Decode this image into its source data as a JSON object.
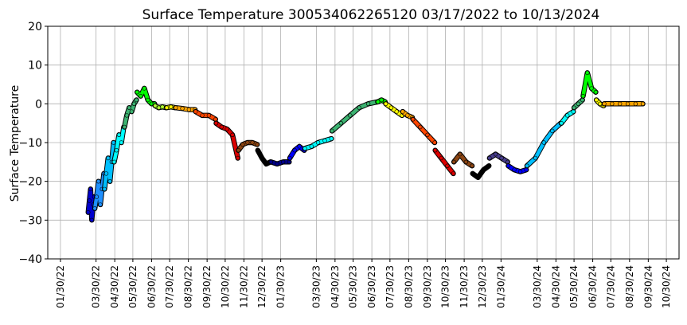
{
  "chart_data": {
    "type": "scatter",
    "title": "Surface Temperature 300534062265120  03/17/2022 to 10/13/2024",
    "ylabel": "Surface Temperature",
    "xlabel": "",
    "ylim": [
      -40,
      20
    ],
    "xlim": [
      "2022-01-09",
      "2024-11-20"
    ],
    "grid": true,
    "y_ticks": [
      "−40",
      "−30",
      "−20",
      "−10",
      "0",
      "10",
      "20"
    ],
    "x_ticks": [
      {
        "date": "2022-01-30",
        "label": "01/30/22"
      },
      {
        "date": "2022-03-30",
        "label": "03/30/22"
      },
      {
        "date": "2022-04-30",
        "label": "04/30/22"
      },
      {
        "date": "2022-05-30",
        "label": "05/30/22"
      },
      {
        "date": "2022-06-30",
        "label": "06/30/22"
      },
      {
        "date": "2022-07-30",
        "label": "07/30/22"
      },
      {
        "date": "2022-08-30",
        "label": "08/30/22"
      },
      {
        "date": "2022-09-30",
        "label": "09/30/22"
      },
      {
        "date": "2022-10-30",
        "label": "10/30/22"
      },
      {
        "date": "2022-11-30",
        "label": "11/30/22"
      },
      {
        "date": "2022-12-30",
        "label": "12/30/22"
      },
      {
        "date": "2023-01-30",
        "label": "01/30/23"
      },
      {
        "date": "2023-03-30",
        "label": "03/30/23"
      },
      {
        "date": "2023-04-30",
        "label": "04/30/23"
      },
      {
        "date": "2023-05-30",
        "label": "05/30/23"
      },
      {
        "date": "2023-06-30",
        "label": "06/30/23"
      },
      {
        "date": "2023-07-30",
        "label": "07/30/23"
      },
      {
        "date": "2023-08-30",
        "label": "08/30/23"
      },
      {
        "date": "2023-09-30",
        "label": "09/30/23"
      },
      {
        "date": "2023-10-30",
        "label": "10/30/23"
      },
      {
        "date": "2023-11-30",
        "label": "11/30/23"
      },
      {
        "date": "2023-12-30",
        "label": "12/30/23"
      },
      {
        "date": "2024-01-30",
        "label": "01/30/24"
      },
      {
        "date": "2024-03-30",
        "label": "03/30/24"
      },
      {
        "date": "2024-04-30",
        "label": "04/30/24"
      },
      {
        "date": "2024-05-30",
        "label": "05/30/24"
      },
      {
        "date": "2024-06-30",
        "label": "06/30/24"
      },
      {
        "date": "2024-07-30",
        "label": "07/30/24"
      },
      {
        "date": "2024-08-30",
        "label": "08/30/24"
      },
      {
        "date": "2024-09-30",
        "label": "09/30/24"
      },
      {
        "date": "2024-10-30",
        "label": "10/30/24"
      }
    ],
    "marker_edge_color": "#000000",
    "series": [
      {
        "color": "#0000cd",
        "x": [
          "2022-03-17",
          "2022-03-19",
          "2022-03-21",
          "2022-03-23",
          "2022-03-25",
          "2022-03-27"
        ],
        "y": [
          -28,
          -25,
          -22,
          -30,
          -26,
          -24
        ]
      },
      {
        "color": "#1e90ff",
        "x": [
          "2022-03-28",
          "2022-03-31",
          "2022-04-03",
          "2022-04-06",
          "2022-04-09",
          "2022-04-12"
        ],
        "y": [
          -27,
          -24,
          -20,
          -26,
          -22,
          -18
        ]
      },
      {
        "color": "#00bfff",
        "x": [
          "2022-04-13",
          "2022-04-16",
          "2022-04-19",
          "2022-04-22",
          "2022-04-25",
          "2022-04-28"
        ],
        "y": [
          -22,
          -18,
          -14,
          -20,
          -15,
          -10
        ]
      },
      {
        "color": "#00ffff",
        "x": [
          "2022-04-29",
          "2022-05-03",
          "2022-05-07",
          "2022-05-11",
          "2022-05-15"
        ],
        "y": [
          -15,
          -12,
          -8,
          -10,
          -6
        ]
      },
      {
        "color": "#3cb371",
        "x": [
          "2022-05-16",
          "2022-05-20",
          "2022-05-24",
          "2022-05-28",
          "2022-06-01",
          "2022-06-05"
        ],
        "y": [
          -6,
          -3,
          -1,
          -2,
          0,
          1
        ]
      },
      {
        "color": "#00ff00",
        "x": [
          "2022-06-06",
          "2022-06-12",
          "2022-06-18",
          "2022-06-24",
          "2022-06-30",
          "2022-07-05"
        ],
        "y": [
          3,
          2,
          4,
          1,
          0,
          0
        ]
      },
      {
        "color": "#adff2f",
        "x": [
          "2022-07-06",
          "2022-07-12",
          "2022-07-18",
          "2022-07-24"
        ],
        "y": [
          -0.5,
          -1,
          -0.8,
          -1
        ]
      },
      {
        "color": "#ffff00",
        "x": [
          "2022-07-25",
          "2022-08-01",
          "2022-08-08"
        ],
        "y": [
          -1,
          -0.8,
          -1
        ]
      },
      {
        "color": "#ffa500",
        "x": [
          "2022-08-09",
          "2022-08-20",
          "2022-08-31",
          "2022-09-10"
        ],
        "y": [
          -1,
          -1.2,
          -1.5,
          -1.5
        ]
      },
      {
        "color": "#ff4500",
        "x": [
          "2022-09-11",
          "2022-09-22",
          "2022-10-03",
          "2022-10-14"
        ],
        "y": [
          -2,
          -3,
          -3,
          -4
        ]
      },
      {
        "color": "#dc0000",
        "x": [
          "2022-10-15",
          "2022-10-24",
          "2022-11-02",
          "2022-11-11",
          "2022-11-20"
        ],
        "y": [
          -5,
          -6,
          -6.5,
          -8,
          -14
        ]
      },
      {
        "color": "#8b4513",
        "x": [
          "2022-11-21",
          "2022-11-28",
          "2022-12-06",
          "2022-12-14",
          "2022-12-22"
        ],
        "y": [
          -12,
          -10.5,
          -10,
          -10,
          -10.5
        ]
      },
      {
        "color": "#000000",
        "x": [
          "2022-12-23",
          "2022-12-30",
          "2023-01-06",
          "2023-01-13"
        ],
        "y": [
          -12,
          -14,
          -15.5,
          -15
        ]
      },
      {
        "color": "#00008b",
        "x": [
          "2023-01-14",
          "2023-01-24",
          "2023-02-03",
          "2023-02-13"
        ],
        "y": [
          -15,
          -15.5,
          -15,
          -15
        ]
      },
      {
        "color": "#0000ff",
        "x": [
          "2023-02-14",
          "2023-02-22",
          "2023-03-02",
          "2023-03-10"
        ],
        "y": [
          -14,
          -12,
          -11,
          -12
        ]
      },
      {
        "color": "#00ffff",
        "x": [
          "2023-03-11",
          "2023-03-22",
          "2023-04-02",
          "2023-04-13",
          "2023-04-24"
        ],
        "y": [
          -11.5,
          -11,
          -10,
          -9.5,
          -9
        ]
      },
      {
        "color": "#3cb371",
        "x": [
          "2023-04-25",
          "2023-05-10",
          "2023-05-25",
          "2023-06-09",
          "2023-06-24",
          "2023-07-09"
        ],
        "y": [
          -7,
          -5,
          -3,
          -1,
          0,
          0.5
        ]
      },
      {
        "color": "#00ff00",
        "x": [
          "2023-07-10",
          "2023-07-16",
          "2023-07-22"
        ],
        "y": [
          0.5,
          1,
          0.5
        ]
      },
      {
        "color": "#ffff00",
        "x": [
          "2023-07-23",
          "2023-08-01",
          "2023-08-10",
          "2023-08-19"
        ],
        "y": [
          0,
          -1,
          -2,
          -3
        ]
      },
      {
        "color": "#ffa500",
        "x": [
          "2023-08-20",
          "2023-08-28",
          "2023-09-05"
        ],
        "y": [
          -2,
          -3,
          -3.5
        ]
      },
      {
        "color": "#ff4500",
        "x": [
          "2023-09-06",
          "2023-09-18",
          "2023-09-30",
          "2023-10-12"
        ],
        "y": [
          -4,
          -6,
          -8,
          -10
        ]
      },
      {
        "color": "#dc0000",
        "x": [
          "2023-10-13",
          "2023-10-23",
          "2023-11-02",
          "2023-11-12"
        ],
        "y": [
          -12,
          -14,
          -16,
          -18
        ]
      },
      {
        "color": "#8b4513",
        "x": [
          "2023-11-13",
          "2023-11-23",
          "2023-12-03",
          "2023-12-13"
        ],
        "y": [
          -15,
          -13,
          -15,
          -16
        ]
      },
      {
        "color": "#000000",
        "x": [
          "2023-12-14",
          "2023-12-23",
          "2024-01-01",
          "2024-01-10"
        ],
        "y": [
          -18,
          -19,
          -17,
          -16
        ]
      },
      {
        "color": "#483d8b",
        "x": [
          "2024-01-11",
          "2024-01-21",
          "2024-01-31",
          "2024-02-10"
        ],
        "y": [
          -14,
          -13,
          -14,
          -15
        ]
      },
      {
        "color": "#0000ff",
        "x": [
          "2024-02-11",
          "2024-02-21",
          "2024-03-02",
          "2024-03-12"
        ],
        "y": [
          -16,
          -17,
          -17.5,
          -17
        ]
      },
      {
        "color": "#00bfff",
        "x": [
          "2024-03-13",
          "2024-03-27",
          "2024-04-10",
          "2024-04-24",
          "2024-05-08"
        ],
        "y": [
          -16,
          -14,
          -10,
          -7,
          -5
        ]
      },
      {
        "color": "#00ffff",
        "x": [
          "2024-05-09",
          "2024-05-19",
          "2024-05-29"
        ],
        "y": [
          -5,
          -3,
          -2
        ]
      },
      {
        "color": "#3cb371",
        "x": [
          "2024-05-30",
          "2024-06-06",
          "2024-06-13"
        ],
        "y": [
          -1,
          0,
          1
        ]
      },
      {
        "color": "#00ff00",
        "x": [
          "2024-06-14",
          "2024-06-21",
          "2024-06-28",
          "2024-07-05"
        ],
        "y": [
          2,
          8,
          4,
          3
        ]
      },
      {
        "color": "#ffff00",
        "x": [
          "2024-07-06",
          "2024-07-12",
          "2024-07-18"
        ],
        "y": [
          1,
          0,
          -0.5
        ]
      },
      {
        "color": "#ffa500",
        "x": [
          "2024-07-19",
          "2024-08-01",
          "2024-08-14",
          "2024-08-27",
          "2024-09-09",
          "2024-09-21"
        ],
        "y": [
          0,
          0,
          0,
          0,
          0,
          0
        ]
      }
    ]
  }
}
